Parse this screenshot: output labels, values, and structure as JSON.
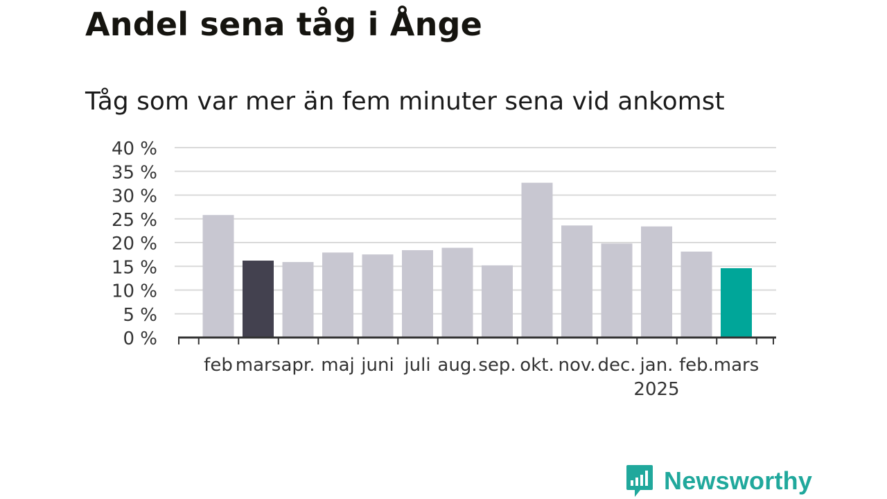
{
  "header": {
    "title": "Andel sena tåg i Ånge",
    "subtitle": "Tåg som var mer än fem minuter sena vid ankomst"
  },
  "brand": {
    "name": "Newsworthy",
    "icon": "bar-chart-speech-bubble-icon",
    "color": "#20a89c"
  },
  "chart_data": {
    "type": "bar",
    "title": "",
    "xlabel": "",
    "ylabel": "",
    "categories": [
      "feb",
      "mars",
      "apr.",
      "maj",
      "juni",
      "juli",
      "aug.",
      "sep.",
      "okt.",
      "nov.",
      "dec.",
      "jan.",
      "feb.",
      "mars"
    ],
    "year_labels": [
      {
        "category_index": 11,
        "label": "2025"
      }
    ],
    "values": [
      25.8,
      16.2,
      15.9,
      17.9,
      17.5,
      18.4,
      18.9,
      15.2,
      32.6,
      23.6,
      19.8,
      23.4,
      18.1,
      14.6
    ],
    "ylim": [
      0,
      40
    ],
    "yticks": [
      0,
      5,
      10,
      15,
      20,
      25,
      30,
      35,
      40
    ],
    "ytick_labels": [
      "0 %",
      "5 %",
      "10 %",
      "15 %",
      "20 %",
      "25 %",
      "30 %",
      "35 %",
      "40 %"
    ],
    "grid": true,
    "colors": {
      "default": "#c8c7d1",
      "previous_year_highlight": "#43414f",
      "current_highlight": "#00a699",
      "grid": "#d9d9d9",
      "axis": "#333333"
    },
    "highlights": [
      {
        "index": 1,
        "role": "previous_year_highlight"
      },
      {
        "index": 13,
        "role": "current_highlight"
      }
    ]
  }
}
